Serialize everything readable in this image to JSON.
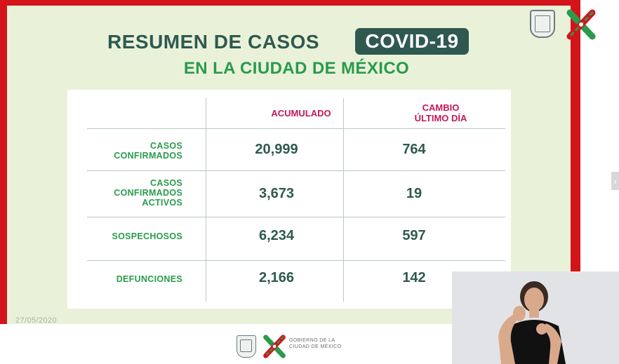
{
  "header": {
    "title": "RESUMEN DE CASOS",
    "badge": "COVID-19",
    "subtitle": "EN LA CIUDAD DE MÉXICO"
  },
  "table": {
    "columns": [
      "ACUMULADO",
      "CAMBIO",
      "ÚLTIMO DÍA"
    ],
    "rows": [
      {
        "label_lines": [
          "CASOS",
          "CONFIRMADOS"
        ],
        "acumulado": "20,999",
        "cambio": "764"
      },
      {
        "label_lines": [
          "CASOS",
          "CONFIRMADOS",
          "ACTIVOS"
        ],
        "acumulado": "3,673",
        "cambio": "19"
      },
      {
        "label_lines": [
          "SOSPECHOSOS"
        ],
        "acumulado": "6,234",
        "cambio": "597"
      },
      {
        "label_lines": [
          "DEFUNCIONES"
        ],
        "acumulado": "2,166",
        "cambio": "142"
      }
    ]
  },
  "date": "27/05/2020",
  "footer": {
    "line1": "GOBIERNO DE LA",
    "line2": "CIUDAD DE MÉXICO"
  },
  "colors": {
    "frame_red": "#d4141b",
    "slide_bg": "#e9f2d9",
    "dark_teal": "#2f5950",
    "green": "#2a9a4c",
    "magenta": "#c2185b"
  },
  "icons": [
    "cdmx-shield-icon",
    "cdmx-cross-logo-icon",
    "chevron-right-icon"
  ],
  "video_overlay": "sign-language-interpreter"
}
